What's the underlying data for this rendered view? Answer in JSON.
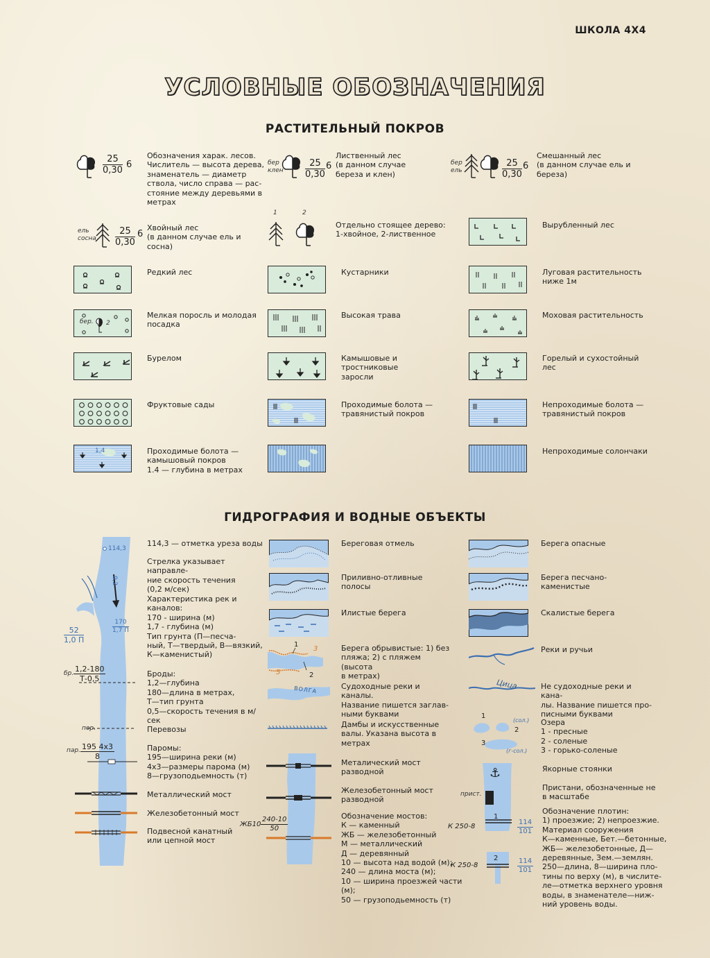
{
  "brand": "ШКОЛА 4Х4",
  "title": "УСЛОВНЫЕ ОБОЗНАЧЕНИЯ",
  "colors": {
    "paper": "#efe6d2",
    "box_fill": "#d9ebdb",
    "water": "#a9c9ea",
    "water_dark": "#3b6fb0",
    "orange": "#d87a2a"
  },
  "vegetation": {
    "title": "РАСТИТЕЛЬНЫЙ ПОКРОВ",
    "forest_char": {
      "num": "25",
      "den": "0,30",
      "side": "6",
      "desc": "Обозначения харак. лесов.\nЧислитель — высота дерева,\nзнаменатель — диаметр\nствола, число справа — рас-\nстояние между деревьями в\nметрах"
    },
    "deciduous": {
      "label1": "бер",
      "label2": "клен",
      "num": "25",
      "den": "0,30",
      "side": "6",
      "desc": "Лиственный лес\n(в данном случае\nбереза и клен)"
    },
    "mixed": {
      "label1": "бер",
      "label2": "ель",
      "num": "25",
      "den": "0,30",
      "side": "6",
      "desc": "Смешанный лес\n(в данном случае ель и\nбереза)"
    },
    "conifer": {
      "label1": "ель",
      "label2": "сосна",
      "num": "25",
      "den": "0,30",
      "side": "6",
      "desc": "Хвойный лес\n(в данном случае ель и\nсосна)"
    },
    "single_tree": {
      "n1": "1",
      "n2": "2",
      "desc": "Отдельно стоящее дерево:\n1-хвойное, 2-лиственное"
    },
    "cut_forest": "Вырубленный лес",
    "sparse_forest": "Редкий лес",
    "shrubs": "Кустарники",
    "meadow": "Луговая растительность\nниже 1м",
    "young_growth": {
      "label": "бер.",
      "num": "2",
      "desc": "Мелкая поросль и молодая\nпосадка"
    },
    "tall_grass": "Высокая трава",
    "moss": "Моховая растительность",
    "windfall": "Бурелом",
    "reeds": "Камышовые и тростниковые\nзаросли",
    "burnt": "Горелый и сухостойный лес",
    "orchards": "Фруктовые сады",
    "passable_swamp_grass": "Проходимые болота —\nтравянистый покров",
    "impassable_swamp_grass": "Непроходимые болота —\nтравянистый покров",
    "passable_swamp_reed": {
      "depth": "1,4",
      "desc": "Проходимые болота —\nкамышовый покров\n1.4 — глубина в метрах"
    },
    "salt_marsh": "Непроходимые солончаки"
  },
  "hydro": {
    "title": "ГИДРОГРАФИЯ И ВОДНЫЕ ОБЪЕКТЫ",
    "river_labels": {
      "elev": "114,3",
      "speed": "0,2",
      "width_num": "170",
      "width_den": "1,7 П",
      "trib_num": "52",
      "trib_den": "1,0 П",
      "ford_prefix": "бр.",
      "ford_num": "1,2-180",
      "ford_den": "Т-0,5",
      "ferry_label": "пер.",
      "ferry2_prefix": "пар.",
      "ferry2_num": "195 4х3",
      "ferry2_den": "8"
    },
    "col1_desc": {
      "elev": "114,3 — отметка уреза воды",
      "speed": "Стрелка указывает направле-\nние скорость течения\n(0,2 м/сек)",
      "river": "Характеристика рек и\nканалов:\n170 - ширина (м)\n1,7 - глубина (м)\nТип грунта (П—песча-\nный, Т—твердый, В—вязкий,\nК—каменистый)",
      "ford": "Броды:\n1,2—глубина\n180—длина в метрах,\nТ—тип грунта\n0,5—скорость течения в м/сек",
      "ferry": "Перевозы",
      "ferry2": "Паромы:\n195—ширина реки (м)\n4х3—размеры парома (м)\n8—грузоподьемность (т)",
      "metal_bridge": "Металлический мост",
      "rc_bridge": "Железобетонный мост",
      "suspension": "Подвесной канатный\nили цепной мост"
    },
    "col2_desc": {
      "shoal": "Береговая отмель",
      "tidal": "Приливно-отливные полосы",
      "silt": "Илистые берега",
      "cliff": "Берега обрывистые: 1) без\nпляжа; 2) с пляжем (высота\nв метрах)",
      "navigable": "Судоходные реки и каналы.\nНазвание пишется заглав-\nными буквами",
      "dams": "Дамбы и искусственные\nвалы. Указана высота в\nметрах",
      "metal_bridge": "Металический мост\nразводной",
      "rc_bridge": "Железобетонный мост\nразводной",
      "bridge_codes": "Обозначение мостов:\nК — каменный\nЖБ — железобетонный\nМ — металлический\nД — деревянный\n10 — высота над водой (м);\n240 — длина моста (м);\n10 — ширина проезжей части (м);\n50 — грузоподьемность (т)"
    },
    "cliff_labels": {
      "a": "1",
      "b": "2",
      "c": "3",
      "d": "5"
    },
    "volga": "ВОЛГА",
    "bridge_code": {
      "prefix": "ЖБ10",
      "num": "240-10",
      "den": "50"
    },
    "col3_desc": {
      "dangerous": "Берега опасные",
      "sandy_stony": "Берега песчано-каменистые",
      "rocky": "Скалистые берега",
      "streams": "Реки и ручьи",
      "nonnavigable": "Не судоходные реки и кана-\nлы. Название пишется про-\nписными буквами",
      "lakes": "Озера\n1 - пресные\n2 - соленые\n3 - горько-соленые",
      "anchorage": "Якорные стоянки",
      "piers": "Пристани, обозначенные не\nв масштабе",
      "dams_codes": "Обозначение плотин:\n1) проезжие; 2) непроезжие.\nМатериал сооружения\nК—каменные, Бет.—бетонные,\nЖБ— железобетонные, Д—\nдеревянные, Зем.—землян.\n250—длина, 8—ширина пло-\nтины по верху (м), в числите-\nле—отметка верхнего уровня\nводы, в знаменателе—ниж-\nний уровень воды."
    },
    "tsitsa": "Цица",
    "lake_labels": {
      "n1": "1",
      "n2": "2",
      "n3": "3",
      "sol": "(сол.)",
      "gsol": "(г-сол.)"
    },
    "pier_label": "прист.",
    "dam1": {
      "code": "К 250-8",
      "num": "1",
      "top": "114",
      "bot": "101"
    },
    "dam2": {
      "code": "К 250-8",
      "num": "2",
      "top": "114",
      "bot": "101"
    }
  }
}
